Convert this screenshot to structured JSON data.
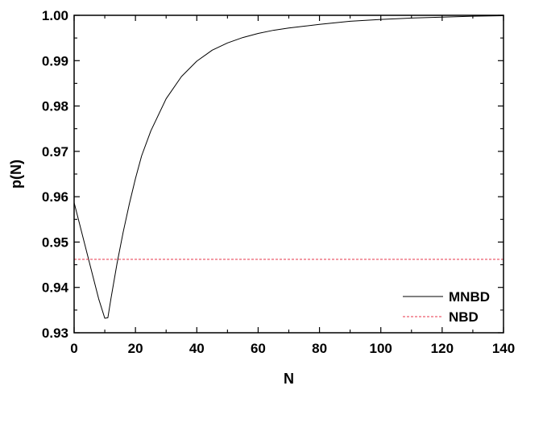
{
  "chart_data": {
    "type": "line",
    "title": "",
    "xlabel": "N",
    "ylabel": "p(N)",
    "xlim": [
      0,
      140
    ],
    "ylim": [
      0.93,
      1.0
    ],
    "xticks": [
      "0",
      "20",
      "40",
      "60",
      "80",
      "100",
      "120",
      "140"
    ],
    "yticks": [
      "0.93",
      "0.94",
      "0.95",
      "0.96",
      "0.97",
      "0.98",
      "0.99",
      "1.00"
    ],
    "grid": false,
    "legend_position": "bottom-right",
    "series": [
      {
        "name": "MNBD",
        "color": "#000000",
        "style": "solid",
        "x": [
          0,
          2,
          4,
          6,
          8,
          10,
          11,
          12,
          14,
          16,
          18,
          20,
          22,
          25,
          30,
          35,
          40,
          45,
          50,
          55,
          60,
          65,
          70,
          75,
          80,
          90,
          100,
          110,
          120,
          130,
          140
        ],
        "y": [
          0.9587,
          0.9534,
          0.9481,
          0.9428,
          0.9375,
          0.9332,
          0.9333,
          0.9375,
          0.9453,
          0.9522,
          0.9584,
          0.964,
          0.969,
          0.9745,
          0.9816,
          0.9865,
          0.9899,
          0.9923,
          0.9939,
          0.9951,
          0.996,
          0.9967,
          0.9972,
          0.9976,
          0.998,
          0.9987,
          0.9991,
          0.9994,
          0.9996,
          0.9998,
          0.9999
        ]
      },
      {
        "name": "NBD",
        "color": "#e8344a",
        "style": "dashed",
        "x": [
          0,
          140
        ],
        "y": [
          0.9462,
          0.9462
        ]
      }
    ]
  }
}
